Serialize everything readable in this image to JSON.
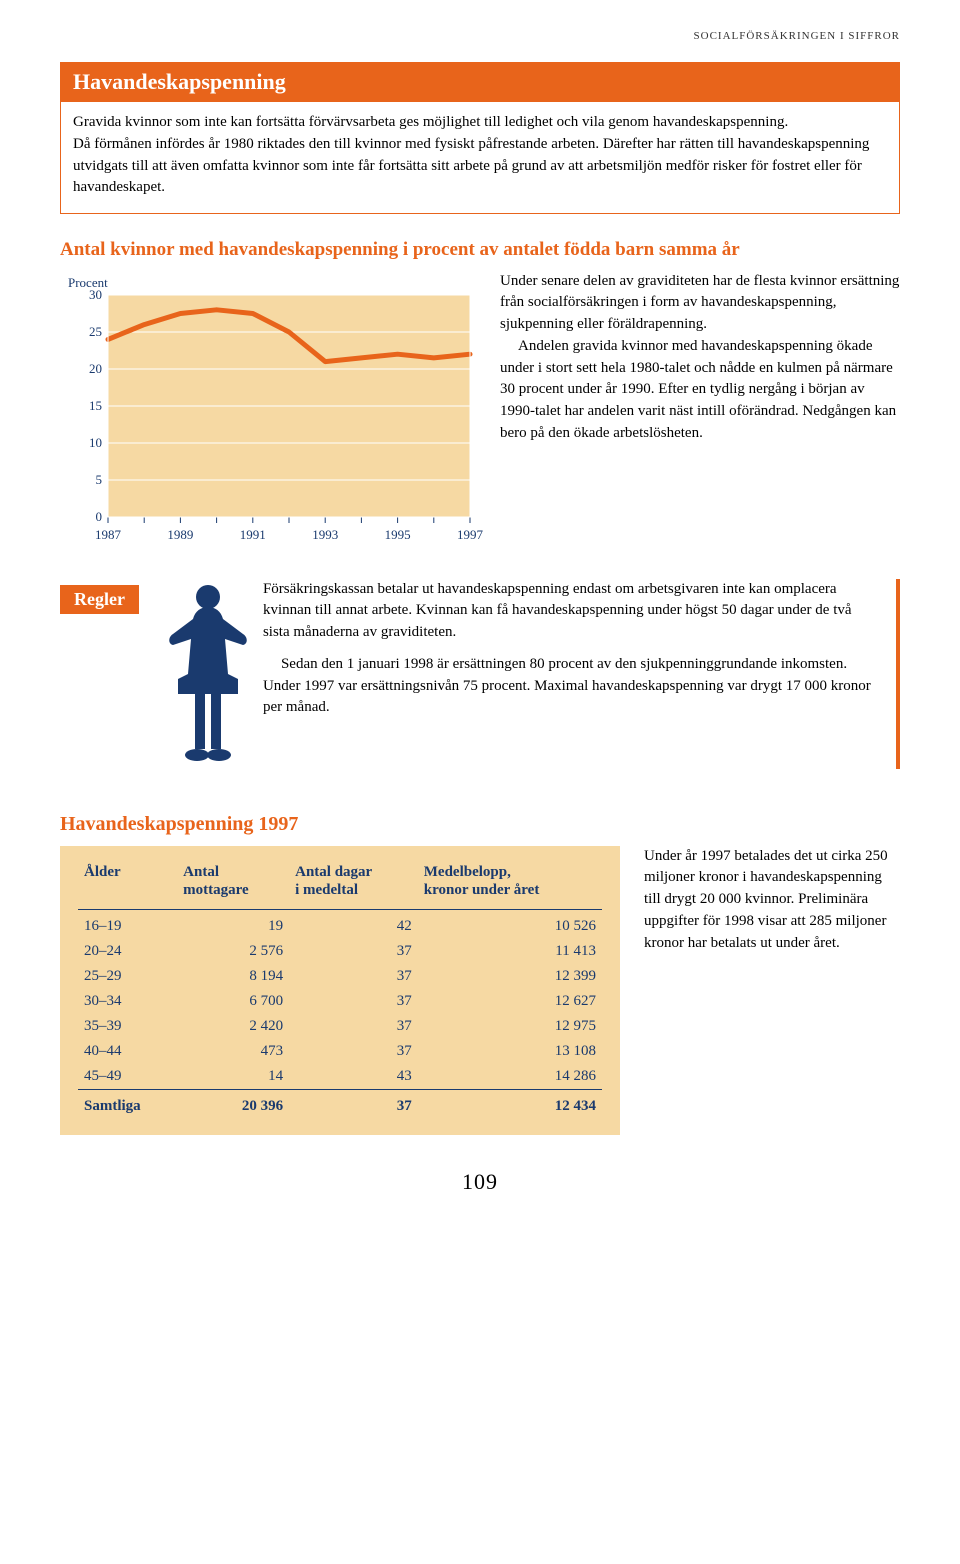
{
  "header": {
    "running_head": "SOCIALFÖRSÄKRINGEN I SIFFROR"
  },
  "section": {
    "banner": "Havandeskapspenning",
    "intro": "Gravida kvinnor som inte kan fortsätta förvärvsarbeta ges möjlighet till ledighet och vila genom havandeskapspenning.\nDå förmånen infördes år 1980 riktades den till kvinnor med fysiskt påfrestande arbeten. Därefter har rätten till havandeskapspenning utvidgats till att även omfatta kvinnor som inte får fortsätta sitt arbete på grund av att arbetsmiljön medför risker för fostret eller för havandeskapet."
  },
  "chart": {
    "title": "Antal kvinnor med havandeskapspenning i procent av antalet födda barn samma år",
    "y_label": "Procent",
    "ylim": [
      0,
      30
    ],
    "ytick_step": 5,
    "yticks": [
      "30",
      "25",
      "20",
      "15",
      "10",
      "5",
      "0"
    ],
    "x_labels": [
      "1987",
      "1989",
      "1991",
      "1993",
      "1995",
      "1997"
    ],
    "x_years": [
      1987,
      1988,
      1989,
      1990,
      1991,
      1992,
      1993,
      1994,
      1995,
      1996,
      1997
    ],
    "values": [
      24,
      26,
      27.5,
      28,
      27.5,
      25,
      21,
      21.5,
      22,
      21.5,
      22
    ],
    "line_color": "#e8641b",
    "line_width": 5,
    "plot_bg": "#f6d9a3",
    "grid_color": "#ffffff",
    "axis_text_color": "#1a3a6e",
    "label_fontsize": 13
  },
  "chart_side": {
    "p1": "Under senare delen av graviditeten har de flesta kvinnor ersättning från socialförsäkringen i form av havandeskapspenning, sjukpenning eller föräldrapenning.",
    "p2": "Andelen gravida kvinnor med havandeskapspenning ökade under i stort sett hela 1980-talet och nådde en kulmen på närmare 30 procent under år 1990. Efter en tydlig nergång i början av 1990-talet har andelen varit näst intill oförändrad. Nedgången kan bero på den ökade arbetslösheten."
  },
  "rules": {
    "badge": "Regler",
    "p1": "Försäkringskassan betalar ut havandeskapspenning endast om arbetsgivaren inte kan omplacera kvinnan till annat arbete. Kvinnan kan få havandeskapspenning under högst 50 dagar under de två sista månaderna av graviditeten.",
    "p2": "Sedan den 1 januari 1998 är ersättningen 80 procent av den sjukpenninggrundande inkomsten. Under 1997 var ersättningsnivån 75 procent. Maximal havandeskapspenning var drygt 17 000 kronor per månad.",
    "figure_color": "#1a3a6e"
  },
  "table": {
    "title": "Havandeskapspenning 1997",
    "columns": [
      "Ålder",
      "Antal mottagare",
      "Antal dagar i medeltal",
      "Medelbelopp, kronor under året"
    ],
    "col_h1": [
      "Ålder",
      "Antal",
      "Antal dagar",
      "Medelbelopp,"
    ],
    "col_h2": [
      "",
      "mottagare",
      "i medeltal",
      "kronor under året"
    ],
    "rows": [
      [
        "16–19",
        "19",
        "42",
        "10 526"
      ],
      [
        "20–24",
        "2 576",
        "37",
        "11 413"
      ],
      [
        "25–29",
        "8 194",
        "37",
        "12 399"
      ],
      [
        "30–34",
        "6 700",
        "37",
        "12 627"
      ],
      [
        "35–39",
        "2 420",
        "37",
        "12 975"
      ],
      [
        "40–44",
        "473",
        "37",
        "13 108"
      ],
      [
        "45–49",
        "14",
        "43",
        "14 286"
      ]
    ],
    "sum_row": [
      "Samtliga",
      "20 396",
      "37",
      "12 434"
    ],
    "header_color": "#1a3a6e",
    "bg": "#f6d9a3"
  },
  "table_side": {
    "p1": "Under år 1997 betalades det ut cirka 250 miljoner kronor i havandeskapspenning till drygt 20 000 kvinnor. Preliminära uppgifter för 1998 visar att 285 miljoner kronor har betalats ut under året."
  },
  "page_number": "109"
}
